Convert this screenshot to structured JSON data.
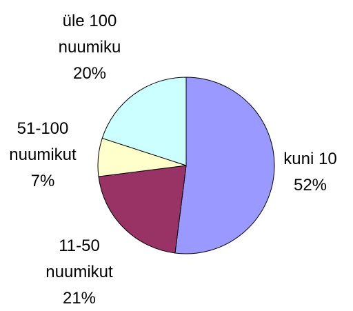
{
  "chart_data": {
    "type": "pie",
    "categories": [
      "kuni 10",
      "11-50\nnuumikut",
      "51-100\nnuumikut",
      "üle 100\nnuumiku"
    ],
    "values": [
      52,
      21,
      7,
      20
    ],
    "value_labels": [
      "52%",
      "21%",
      "7%",
      "20%"
    ],
    "colors": [
      "#9999ff",
      "#993366",
      "#ffffcc",
      "#ccffff"
    ]
  }
}
